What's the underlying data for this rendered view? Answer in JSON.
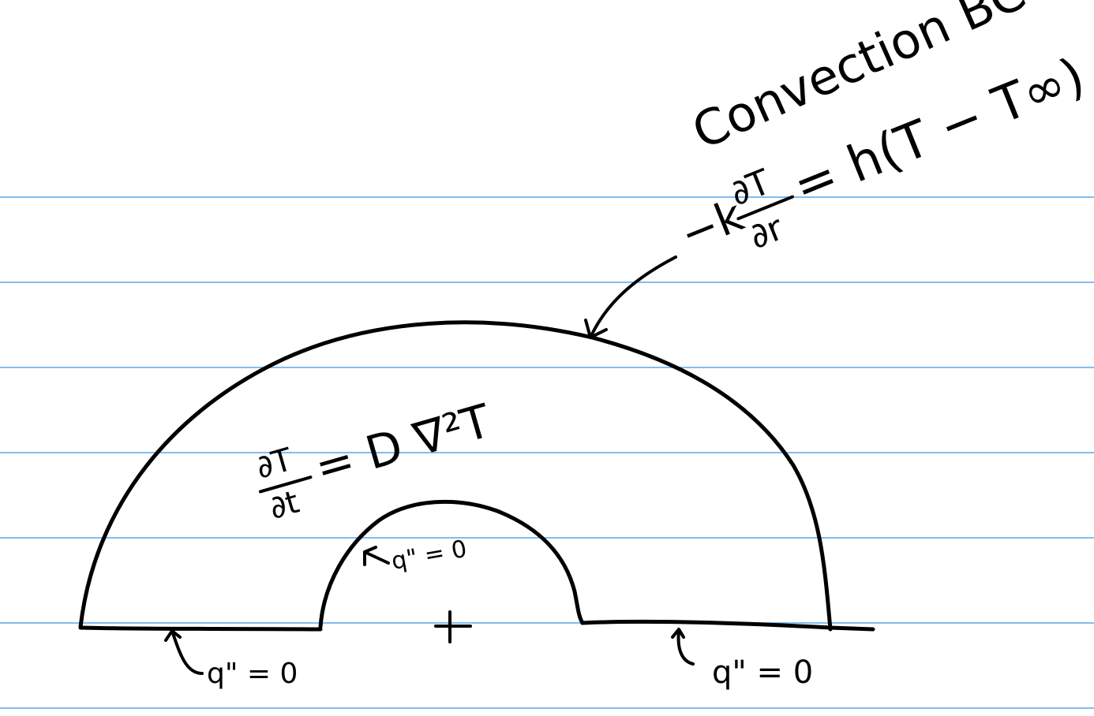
{
  "annotations": {
    "convection_title": "Convection BC",
    "convection_equation": {
      "lhs_prefix": "−k",
      "numerator": "∂T",
      "denominator": "∂r",
      "rhs": "= h(T − T∞)"
    },
    "pde": {
      "numerator": "∂T",
      "denominator": "∂t",
      "rhs": "= D ∇²T"
    },
    "inner_bc": "q\" = 0",
    "bottom_left_bc": "q\" = 0",
    "bottom_right_bc": "q\" = 0",
    "origin_marker": "+"
  },
  "colors": {
    "ruled_line": "#5aa6ec",
    "ink": "#000000",
    "paper": "#ffffff"
  }
}
